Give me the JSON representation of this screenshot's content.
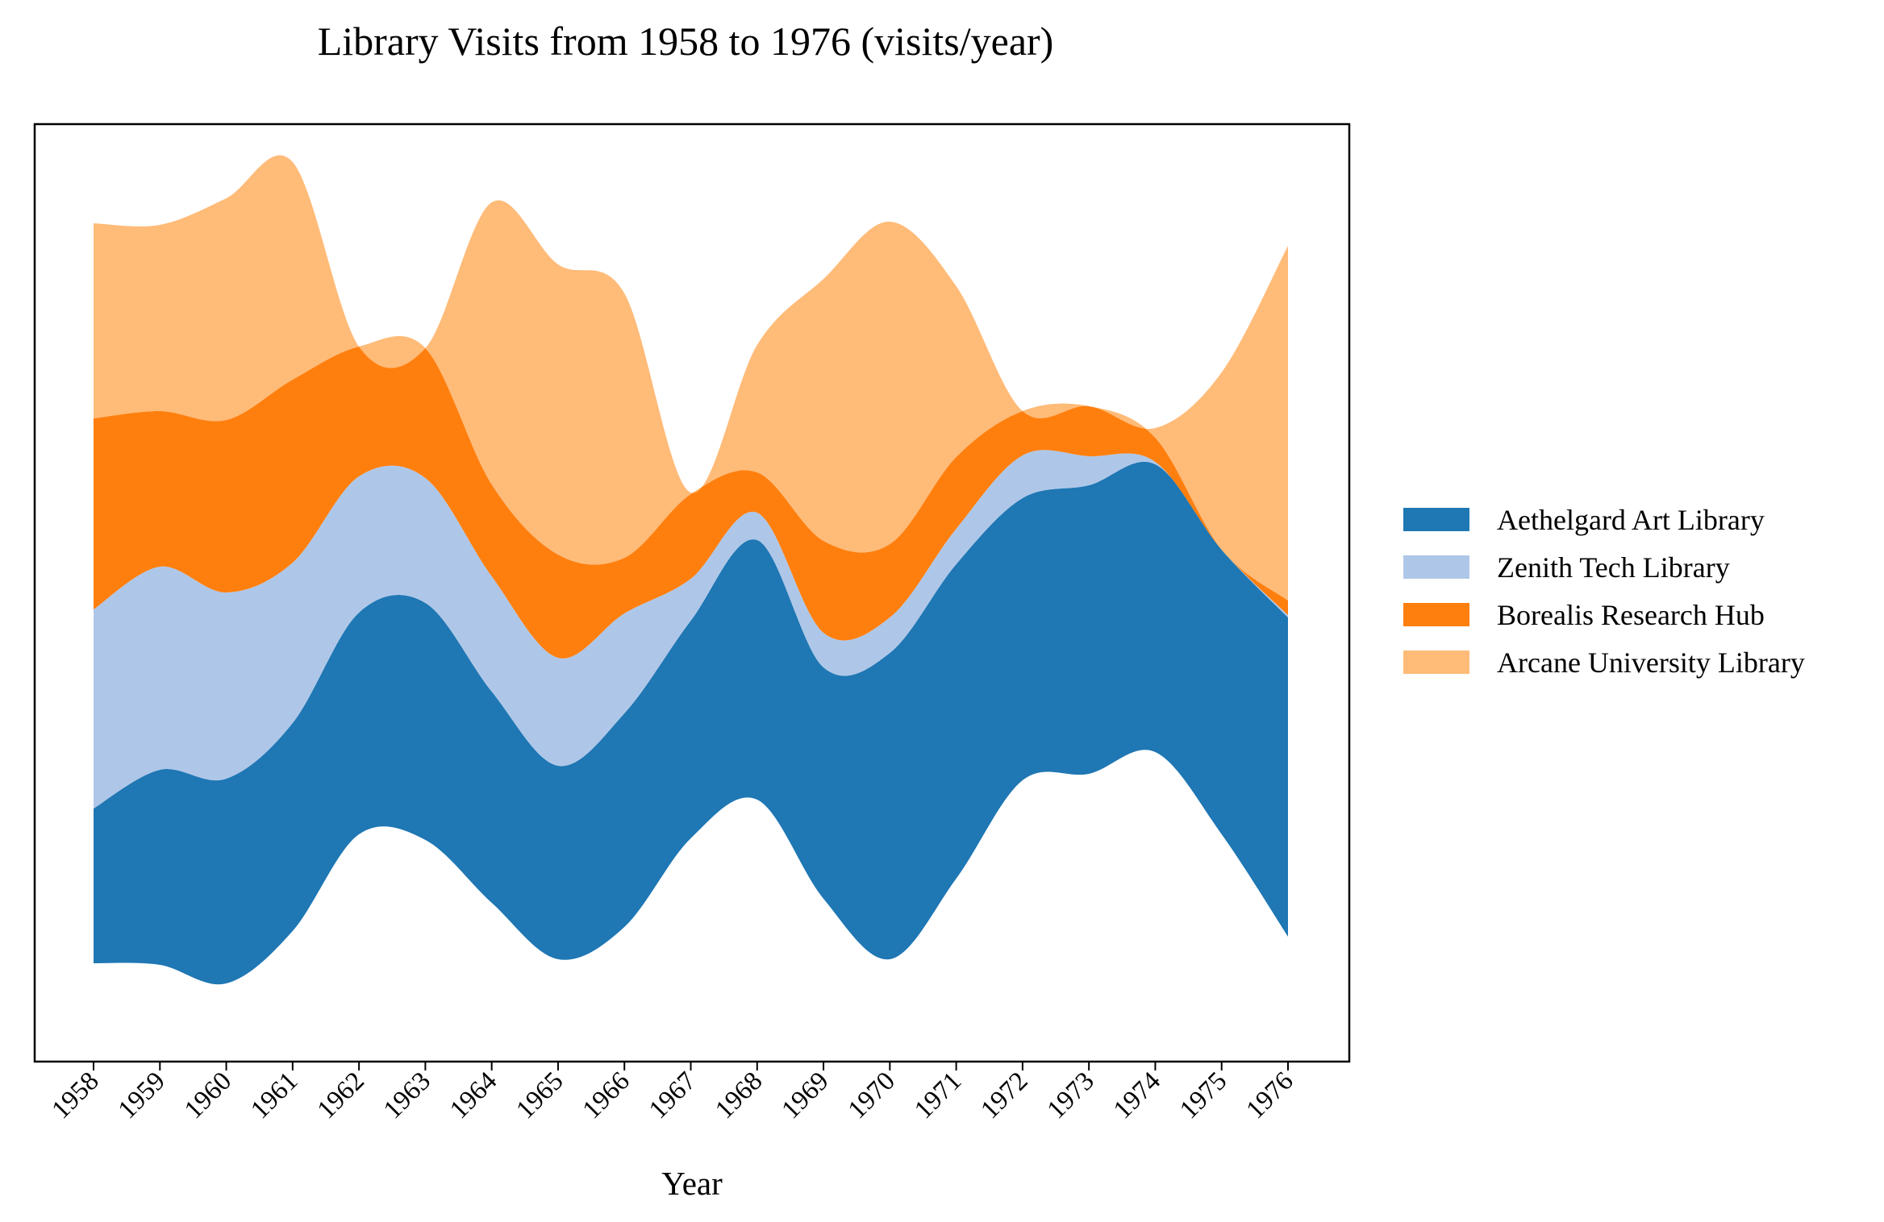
{
  "chart_data": {
    "type": "streamgraph",
    "title": "Library Visits from 1958 to 1976 (visits/year)",
    "xlabel": "Year",
    "ylabel": "",
    "years": [
      1958,
      1959,
      1960,
      1961,
      1962,
      1963,
      1964,
      1965,
      1966,
      1967,
      1968,
      1969,
      1970,
      1971,
      1972,
      1973,
      1974,
      1975,
      1976
    ],
    "x_tick_labels": [
      "1958",
      "1959",
      "1960",
      "1961",
      "1962",
      "1963",
      "1964",
      "1965",
      "1966",
      "1967",
      "1968",
      "1969",
      "1970",
      "1971",
      "1972",
      "1973",
      "1974",
      "1975",
      "1976"
    ],
    "baseline": [
      1195,
      1197,
      1220,
      1155,
      1035,
      1042,
      1120,
      1190,
      1150,
      1040,
      992,
      1115,
      1190,
      1090,
      968,
      960,
      933,
      1035,
      1162
    ],
    "series": [
      {
        "name": "Aethelgard Art Library",
        "color": "#1f77b4",
        "values": [
          192,
          242,
          254,
          258,
          275,
          294,
          262,
          240,
          265,
          270,
          322,
          287,
          380,
          390,
          350,
          358,
          357,
          353,
          396
        ]
      },
      {
        "name": "Zenith Tech Library",
        "color": "#aec7e8",
        "values": [
          247,
          252,
          231,
          199,
          169,
          155,
          143,
          134,
          124,
          52,
          34,
          43,
          44,
          44,
          53,
          36,
          3,
          0,
          3
        ]
      },
      {
        "name": "Borealis Research Hub",
        "color": "#ff7f0e",
        "values": [
          237,
          193,
          214,
          227,
          161,
          161,
          114,
          128,
          69,
          105,
          50,
          114,
          91,
          89,
          55,
          62,
          30,
          0,
          18
        ]
      },
      {
        "name": "Arcane University Library",
        "color": "#ffbb78",
        "values": [
          242,
          231,
          275,
          270,
          0,
          0,
          350,
          360,
          328,
          2,
          158,
          325,
          400,
          212,
          0,
          0,
          12,
          220,
          440
        ]
      }
    ]
  }
}
